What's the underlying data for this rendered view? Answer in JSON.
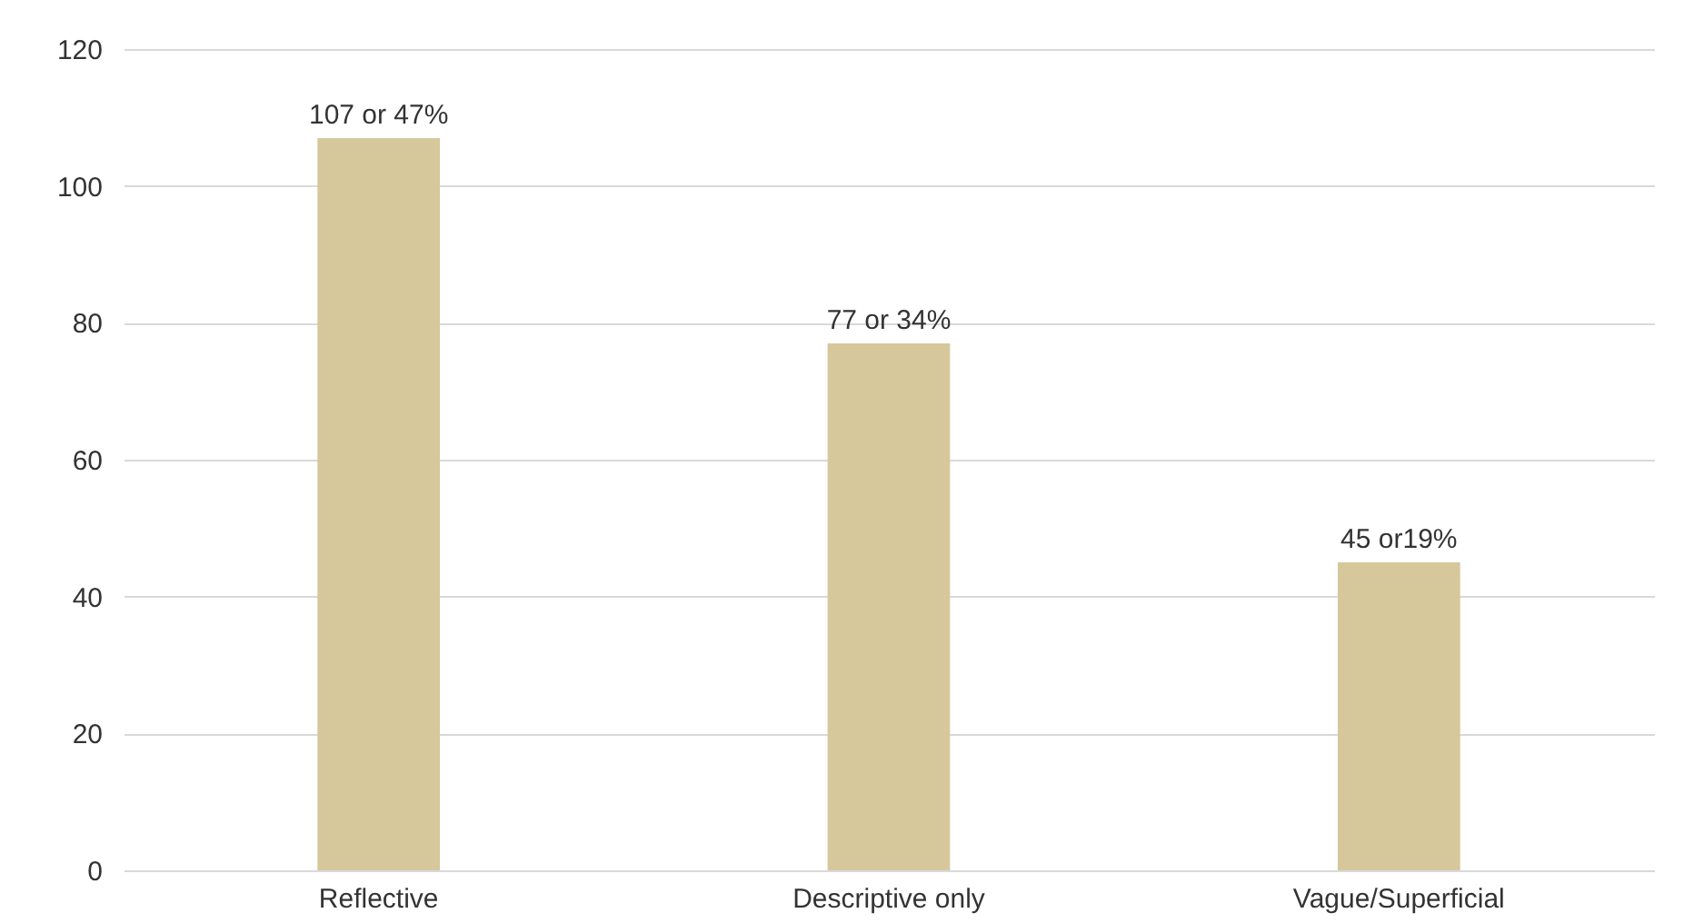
{
  "chart_data": {
    "type": "bar",
    "categories": [
      "Reflective",
      "Descriptive only",
      "Vague/Superficial"
    ],
    "values": [
      107,
      77,
      45
    ],
    "value_labels": [
      "107 or 47%",
      "77 or 34%",
      "45 or19%"
    ],
    "color": "#d6c89b",
    "ylim": [
      0,
      120
    ],
    "yticks": [
      0,
      20,
      40,
      60,
      80,
      100,
      120
    ],
    "grid": "y"
  }
}
